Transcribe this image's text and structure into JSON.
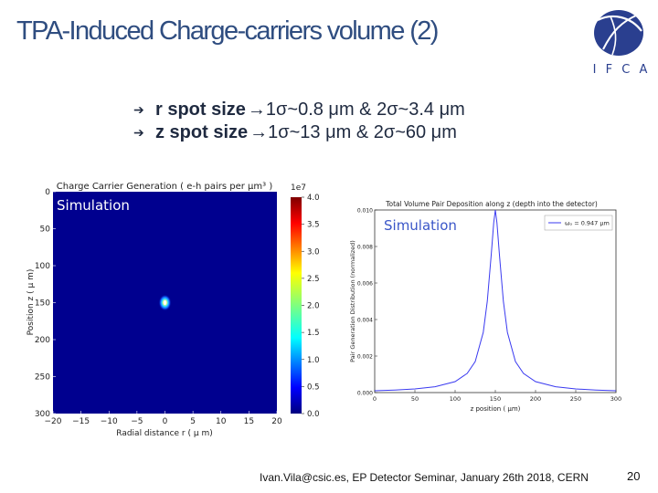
{
  "slide": {
    "title": "TPA-Induced Charge-carriers volume (2)",
    "bullets": [
      {
        "label": "r spot size",
        "text": "→1σ~0.8 μm & 2σ~3.4 μm"
      },
      {
        "label": "z spot size",
        "text": "→1σ~13 μm & 2σ~60 μm"
      }
    ],
    "logo_text": "I F C A",
    "footer": "Ivan.Vila@csic.es, EP Detector Seminar, January 26th 2018, CERN",
    "page_number": "20"
  },
  "colors": {
    "title": "#2f4d80",
    "logo": "#2a3f8f",
    "heatmap_bg": "#00008f",
    "line": "#3a3af0",
    "overlay_text": "#ffffff",
    "overlay_text_right": "#3a56c8"
  },
  "chart_data": [
    {
      "type": "heatmap",
      "title": "Charge Carrier Generation ( e-h pairs per μm³ )",
      "overlay_label": "Simulation",
      "xlabel": "Radial distance r ( μ m)",
      "ylabel": "Position z ( μ m)",
      "xlim": [
        -20,
        20
      ],
      "ylim": [
        0,
        300
      ],
      "x_ticks": [
        "−20",
        "−15",
        "−10",
        "−5",
        "0",
        "5",
        "10",
        "15",
        "20"
      ],
      "y_ticks": [
        "0",
        "50",
        "100",
        "150",
        "200",
        "250",
        "300"
      ],
      "colorbar": {
        "exponent": "1e7",
        "ticks": [
          "0.0",
          "0.5",
          "1.0",
          "1.5",
          "2.0",
          "2.5",
          "3.0",
          "3.5",
          "4.0"
        ],
        "min": 0.0,
        "max": 4.0
      },
      "peak": {
        "r": 0,
        "z": 150
      }
    },
    {
      "type": "line",
      "title": "Total Volume Pair Deposition along z (depth into the detector)",
      "overlay_label": "Simulation",
      "xlabel": "z position ( μm)",
      "ylabel": "Pair Generation Distribution (normalized)",
      "xlim": [
        0,
        300
      ],
      "ylim": [
        0,
        0.01
      ],
      "x_ticks": [
        "0",
        "50",
        "100",
        "150",
        "200",
        "250",
        "300"
      ],
      "y_ticks": [
        "0.000",
        "0.002",
        "0.004",
        "0.006",
        "0.008",
        "0.010"
      ],
      "series": [
        {
          "name": "ωₒ = 0.947 μm",
          "x": [
            0,
            25,
            50,
            75,
            100,
            115,
            125,
            135,
            140,
            145,
            148,
            150,
            152,
            155,
            160,
            165,
            175,
            185,
            200,
            225,
            250,
            275,
            300
          ],
          "y": [
            0.0001,
            0.00014,
            0.0002,
            0.00032,
            0.0006,
            0.00105,
            0.0017,
            0.0033,
            0.005,
            0.0076,
            0.0093,
            0.01,
            0.0093,
            0.0076,
            0.005,
            0.0033,
            0.0017,
            0.00105,
            0.0006,
            0.00032,
            0.0002,
            0.00014,
            0.0001
          ]
        }
      ]
    }
  ]
}
